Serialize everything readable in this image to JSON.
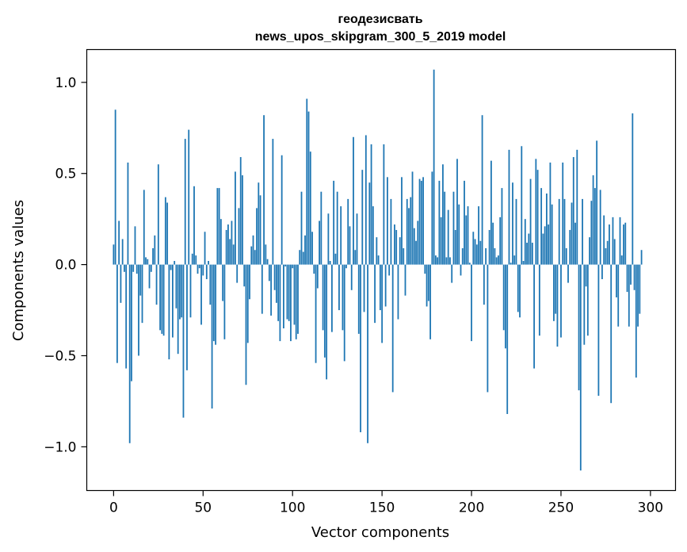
{
  "chart_data": {
    "type": "bar",
    "title_line1": "геодезисвать",
    "title_line2": "news_upos_skipgram_300_5_2019 model",
    "xlabel": "Vector components",
    "ylabel": "Components values",
    "xlim": [
      -15,
      314
    ],
    "ylim": [
      -1.24,
      1.18
    ],
    "xticks": [
      0,
      50,
      100,
      150,
      200,
      250,
      300
    ],
    "xtick_labels": [
      "0",
      "50",
      "100",
      "150",
      "200",
      "250",
      "300"
    ],
    "yticks": [
      -1.0,
      -0.5,
      0.0,
      0.5,
      1.0
    ],
    "ytick_labels": [
      "−1.0",
      "−0.5",
      "0.0",
      "0.5",
      "1.0"
    ],
    "bar_color": "#1f77b4",
    "grid": false,
    "legend": "none",
    "values": [
      0.11,
      0.85,
      -0.54,
      0.24,
      -0.21,
      0.14,
      -0.04,
      -0.57,
      0.56,
      -0.98,
      -0.64,
      -0.04,
      0.21,
      -0.05,
      -0.5,
      -0.17,
      -0.32,
      0.41,
      0.04,
      0.03,
      -0.13,
      -0.04,
      0.09,
      0.16,
      -0.22,
      0.55,
      -0.36,
      -0.38,
      -0.39,
      0.37,
      0.34,
      -0.52,
      -0.03,
      -0.4,
      0.02,
      -0.24,
      -0.49,
      -0.3,
      -0.29,
      -0.84,
      0.69,
      -0.58,
      0.74,
      -0.29,
      0.06,
      0.43,
      0.05,
      -0.05,
      -0.02,
      -0.33,
      -0.06,
      0.18,
      -0.08,
      0.02,
      -0.22,
      -0.79,
      -0.42,
      -0.44,
      0.42,
      0.42,
      0.25,
      -0.2,
      -0.41,
      0.19,
      0.22,
      0.14,
      0.24,
      0.11,
      0.51,
      -0.1,
      0.31,
      0.59,
      0.49,
      -0.12,
      -0.66,
      -0.43,
      -0.19,
      0.1,
      0.16,
      0.08,
      0.31,
      0.45,
      0.38,
      -0.27,
      0.82,
      0.11,
      0.03,
      -0.09,
      -0.28,
      0.69,
      -0.14,
      -0.21,
      -0.31,
      -0.42,
      0.6,
      -0.35,
      -0.01,
      -0.3,
      -0.31,
      -0.42,
      -0.02,
      -0.33,
      -0.41,
      -0.38,
      0.08,
      0.4,
      0.07,
      0.16,
      0.91,
      0.84,
      0.62,
      0.18,
      -0.05,
      -0.54,
      -0.13,
      0.24,
      0.4,
      -0.36,
      -0.51,
      -0.63,
      0.28,
      0.02,
      -0.37,
      0.46,
      0.06,
      0.4,
      -0.25,
      0.32,
      -0.36,
      -0.53,
      -0.02,
      0.36,
      0.21,
      -0.14,
      0.7,
      0.08,
      0.28,
      -0.38,
      -0.92,
      0.52,
      -0.26,
      0.71,
      -0.98,
      0.45,
      0.66,
      0.32,
      -0.32,
      0.15,
      0.05,
      -0.25,
      -0.43,
      0.66,
      -0.23,
      0.48,
      -0.06,
      0.36,
      -0.7,
      0.22,
      0.19,
      -0.3,
      0.15,
      0.48,
      0.09,
      -0.17,
      0.36,
      0.31,
      0.37,
      0.51,
      0.2,
      0.13,
      0.24,
      0.47,
      0.46,
      0.48,
      -0.05,
      -0.23,
      -0.2,
      -0.41,
      0.51,
      1.07,
      0.05,
      0.04,
      0.46,
      0.26,
      0.55,
      0.4,
      0.04,
      0.3,
      0.04,
      -0.1,
      0.4,
      0.19,
      0.58,
      0.33,
      -0.06,
      0.09,
      0.46,
      0.27,
      0.32,
      0.01,
      -0.42,
      0.18,
      0.14,
      0.11,
      0.32,
      0.13,
      0.82,
      -0.22,
      0.09,
      -0.7,
      0.19,
      0.57,
      0.23,
      0.09,
      0.04,
      0.05,
      0.26,
      0.42,
      -0.36,
      -0.46,
      -0.82,
      0.63,
      0.01,
      0.45,
      0.05,
      0.36,
      -0.26,
      -0.29,
      0.65,
      0.02,
      0.25,
      0.12,
      0.17,
      0.47,
      0.12,
      -0.57,
      0.58,
      0.52,
      -0.39,
      0.42,
      0.17,
      0.21,
      0.39,
      0.22,
      0.56,
      0.33,
      -0.31,
      -0.27,
      -0.45,
      0.36,
      -0.4,
      0.56,
      0.36,
      0.09,
      -0.1,
      0.19,
      0.34,
      0.59,
      0.23,
      0.63,
      -0.69,
      -1.13,
      0.36,
      -0.44,
      -0.12,
      -0.39,
      0.15,
      0.35,
      0.49,
      0.42,
      0.68,
      -0.72,
      0.41,
      -0.08,
      0.27,
      0.09,
      0.13,
      0.22,
      -0.76,
      0.26,
      0.14,
      -0.18,
      -0.34,
      0.26,
      0.05,
      0.22,
      0.23,
      -0.15,
      -0.34,
      -0.11,
      0.83,
      -0.14,
      -0.62,
      -0.34,
      -0.27,
      0.08
    ]
  }
}
